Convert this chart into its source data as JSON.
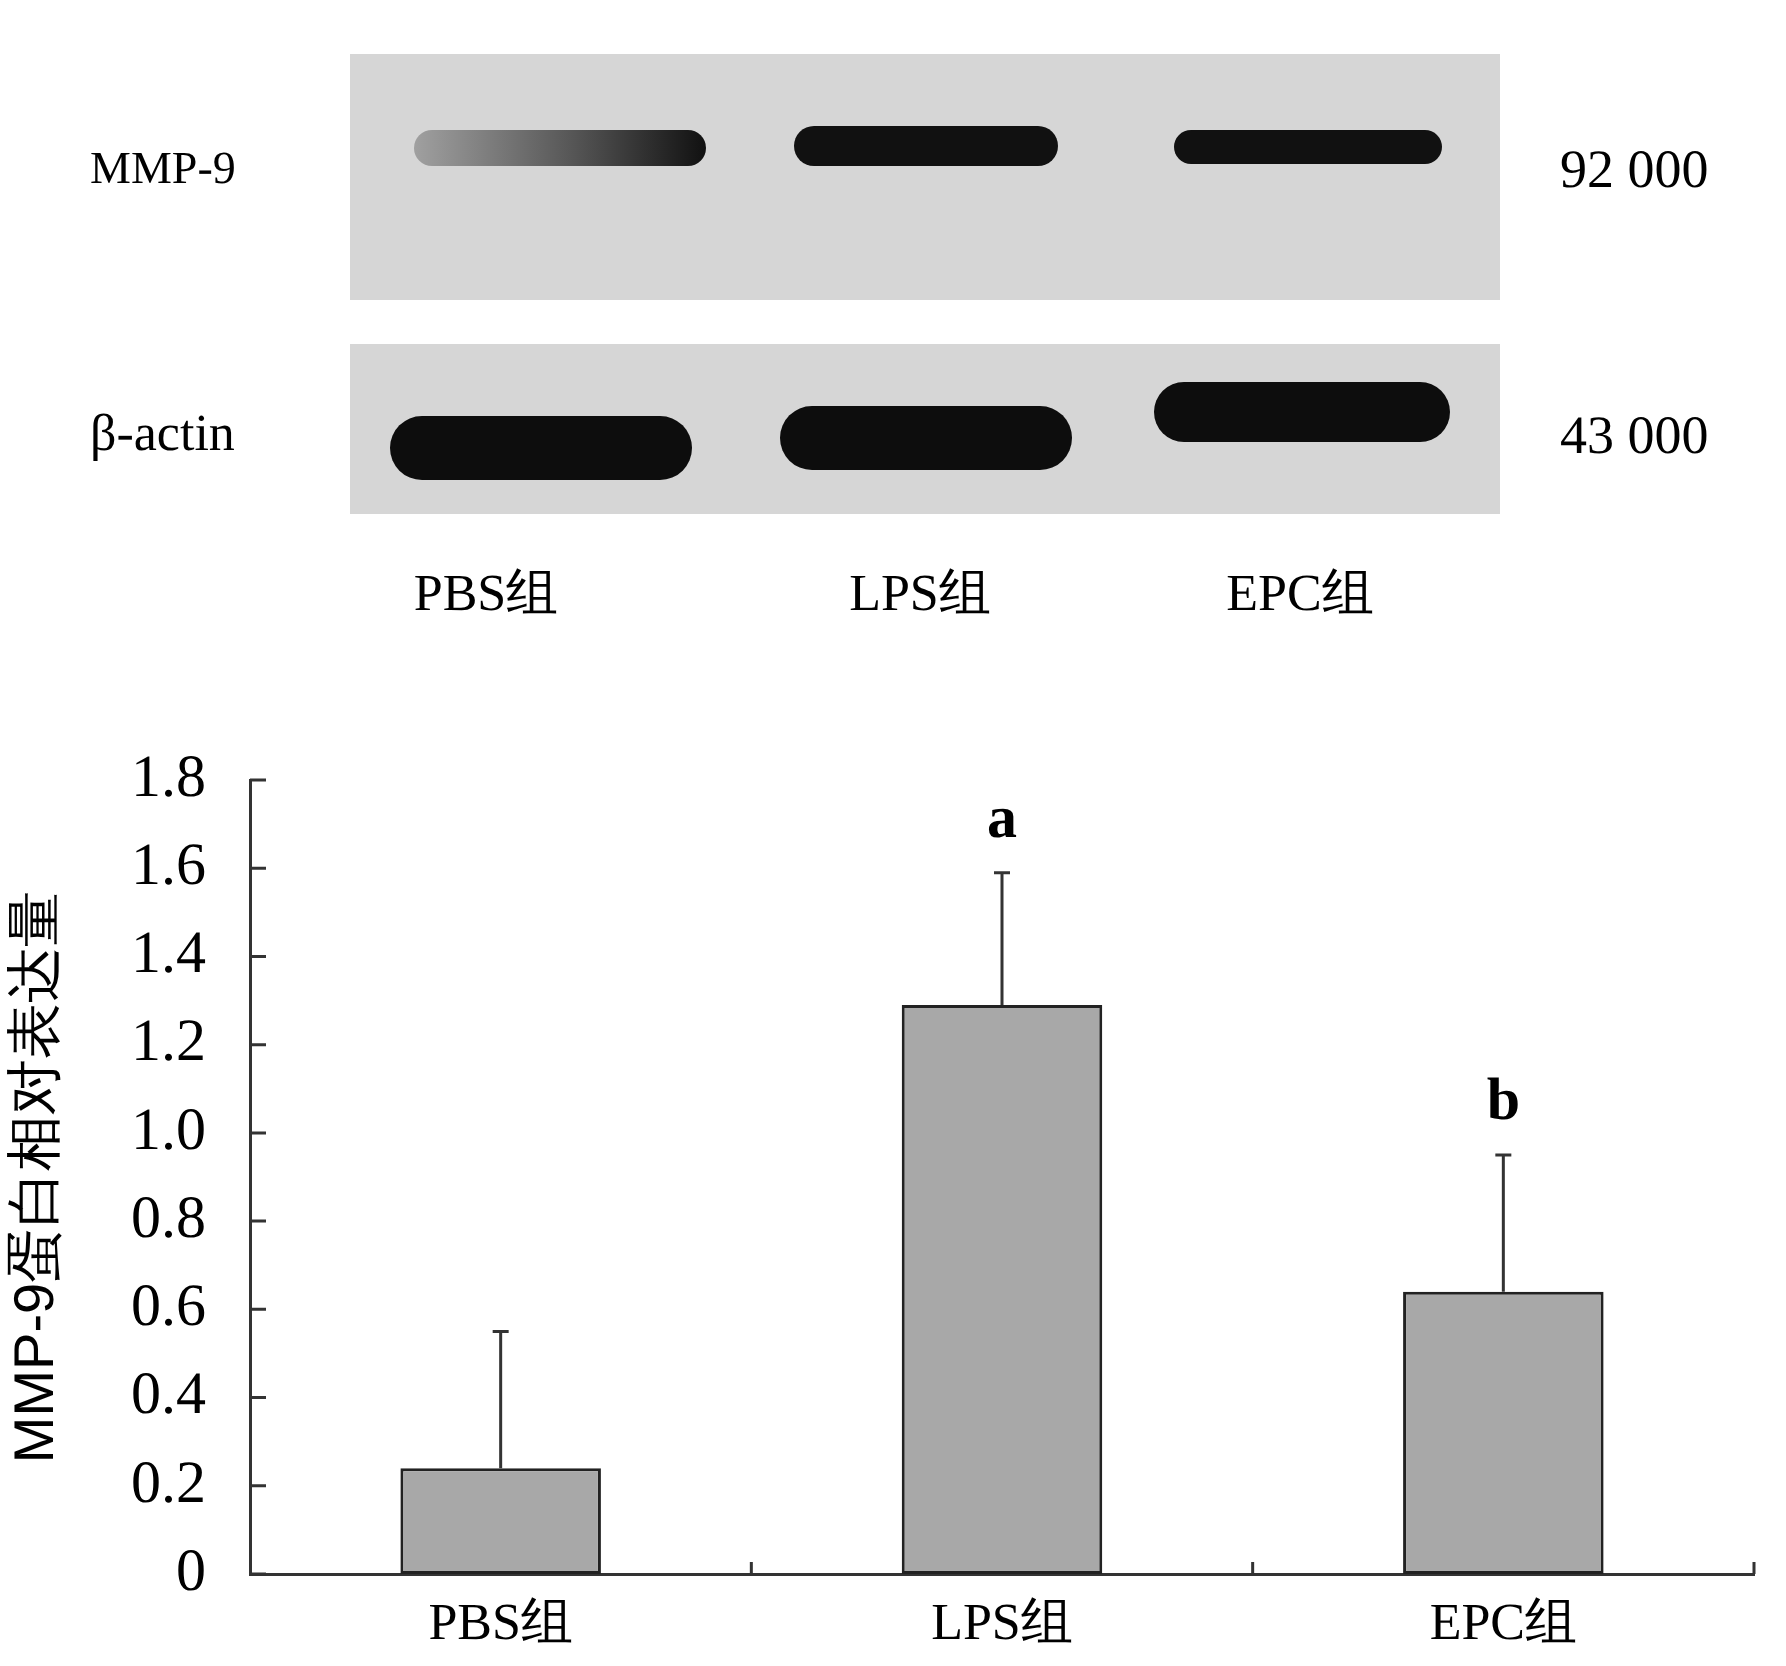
{
  "chart_data": [
    {
      "type": "other",
      "categories": [
        "PBS组",
        "LPS组",
        "EPC组"
      ],
      "y_categories": [
        "MMP-9",
        "β-actin"
      ],
      "y2_categories": [
        "92 000",
        "43 000"
      ]
    },
    {
      "type": "bar",
      "categories": [
        "PBS组",
        "LPS组",
        "EPC组"
      ],
      "values": [
        0.24,
        1.29,
        0.64
      ],
      "errors": [
        [
          0.24,
          0.55
        ],
        [
          1.29,
          1.59
        ],
        [
          0.64,
          0.95
        ]
      ],
      "color": "#a8a8a8",
      "ylabel": "MMP-9蛋白相对表达量",
      "ylim": [
        0,
        1.8
      ],
      "yticks": [
        0,
        0.2,
        0.4,
        0.6,
        0.8,
        {
          "value": 1,
          "label": "1.0"
        },
        1.2,
        1.4,
        1.6,
        1.8
      ],
      "annotations": [
        {
          "text": "a",
          "x": "LPS组",
          "y": 1.59
        },
        {
          "text": "b",
          "x": "EPC组",
          "y": 0.95
        }
      ]
    }
  ]
}
